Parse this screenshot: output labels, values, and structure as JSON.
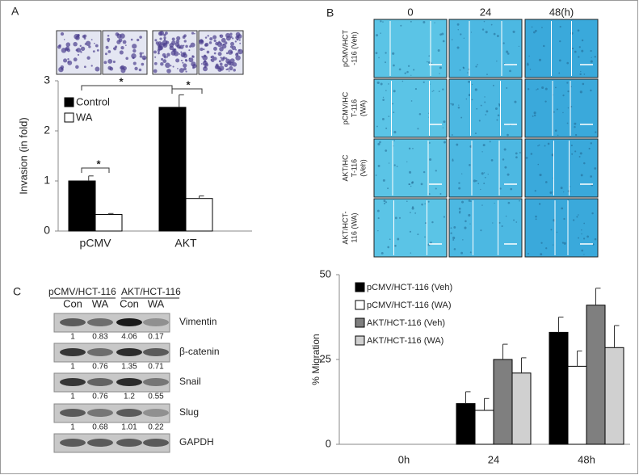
{
  "panel_labels": [
    "A",
    "B",
    "C"
  ],
  "chart_data": [
    {
      "type": "bar",
      "y_label": "Invasion (in fold)",
      "categories": [
        "pCMV",
        "AKT"
      ],
      "series": [
        {
          "name": "Control",
          "color": "#000000",
          "values": [
            1.0,
            2.47
          ],
          "errors": [
            0.1,
            0.25
          ]
        },
        {
          "name": "WA",
          "color": "#ffffff",
          "values": [
            0.33,
            0.65
          ],
          "errors": [
            0.02,
            0.05
          ]
        }
      ],
      "ylim": [
        0,
        3
      ],
      "yticks": [
        0,
        1,
        2,
        3
      ],
      "legend": "upper left",
      "annotations": [
        "*",
        "*",
        "*"
      ]
    },
    {
      "type": "bar",
      "y_label": "% Migration",
      "categories": [
        "0h",
        "24",
        "48h"
      ],
      "series": [
        {
          "name": "pCMV/HCT-116 (Veh)",
          "color": "#000000",
          "values": [
            0,
            12,
            33
          ],
          "errors": [
            0,
            3.5,
            4.5
          ]
        },
        {
          "name": "pCMV/HCT-116 (WA)",
          "color": "#ffffff",
          "values": [
            0,
            10,
            23
          ],
          "errors": [
            0,
            3.5,
            4.5
          ]
        },
        {
          "name": "AKT/HCT-116 (Veh)",
          "color": "#7f7f7f",
          "values": [
            0,
            25,
            41
          ],
          "errors": [
            0,
            4.5,
            5
          ]
        },
        {
          "name": "AKT/HCT-116 (WA)",
          "color": "#d0d0d0",
          "values": [
            0,
            21,
            28.5
          ],
          "errors": [
            0,
            4.5,
            6.5
          ]
        }
      ],
      "ylim": [
        0,
        50
      ],
      "yticks": [
        0,
        25,
        50
      ],
      "legend": "upper left"
    }
  ],
  "migration_images": {
    "columns": [
      "0",
      "24",
      "48(h)"
    ],
    "rows": [
      [
        "pCMV/HCT",
        "-116 (Veh)"
      ],
      [
        "pCMV/HC",
        "T-116",
        "(WA)"
      ],
      [
        "AKT/HC",
        "T-116",
        "(Veh)"
      ],
      [
        "AKT/HCT-",
        "116 (WA)"
      ]
    ]
  },
  "western_blot": {
    "groups": [
      "pCMV/HCT-116",
      "AKT/HCT-116"
    ],
    "lanes": [
      "Con",
      "WA",
      "Con",
      "WA"
    ],
    "proteins": [
      {
        "name": "Vimentin",
        "values": [
          1,
          0.83,
          4.06,
          0.17
        ]
      },
      {
        "name": "β-catenin",
        "values": [
          1,
          0.76,
          1.35,
          0.71
        ]
      },
      {
        "name": "Snail",
        "values": [
          1,
          0.76,
          1.2,
          0.55
        ]
      },
      {
        "name": "Slug",
        "values": [
          1,
          0.68,
          1.01,
          0.22
        ]
      },
      {
        "name": "GAPDH"
      }
    ]
  }
}
